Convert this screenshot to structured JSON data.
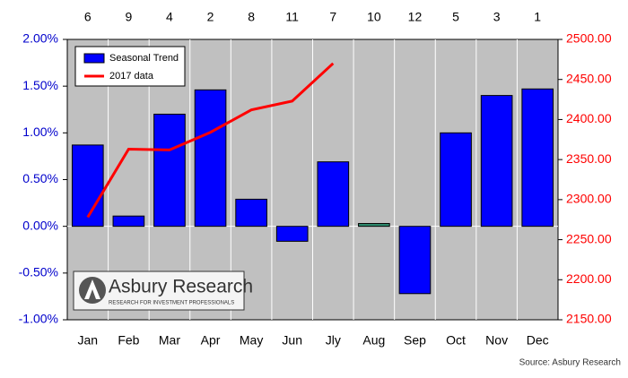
{
  "chart_data": {
    "type": "bar",
    "ranks": [
      6,
      9,
      4,
      2,
      8,
      11,
      7,
      10,
      12,
      5,
      3,
      1
    ],
    "categories": [
      "Jan",
      "Feb",
      "Mar",
      "Apr",
      "May",
      "Jun",
      "Jly",
      "Aug",
      "Sep",
      "Oct",
      "Nov",
      "Dec"
    ],
    "series": [
      {
        "name": "Seasonal Trend",
        "type": "bar",
        "color": "#0000ff",
        "point_colors": [
          "#0000ff",
          "#0000ff",
          "#0000ff",
          "#0000ff",
          "#0000ff",
          "#0000ff",
          "#0000ff",
          "#2e8b6e",
          "#0000ff",
          "#0000ff",
          "#0000ff",
          "#0000ff"
        ],
        "values": [
          0.87,
          0.11,
          1.2,
          1.46,
          0.29,
          -0.16,
          0.69,
          0.03,
          -0.72,
          1.0,
          1.4,
          1.47
        ]
      },
      {
        "name": "2017 data",
        "type": "line",
        "color": "#ff0000",
        "axis": "y2",
        "values": [
          2278,
          2363,
          2362,
          2384,
          2412,
          2423,
          2470,
          null,
          null,
          null,
          null,
          null
        ]
      }
    ],
    "ylim": [
      -1.0,
      2.0
    ],
    "yticks": [
      {
        "value": -1.0,
        "label": "-1.00%"
      },
      {
        "value": -0.5,
        "label": "-0.50%"
      },
      {
        "value": 0,
        "label": "0.00%"
      },
      {
        "value": 0.5,
        "label": "0.50%"
      },
      {
        "value": 1.0,
        "label": "1.00%"
      },
      {
        "value": 1.5,
        "label": "1.50%"
      },
      {
        "value": 2.0,
        "label": "2.00%"
      }
    ],
    "y2lim": [
      2150,
      2500
    ],
    "y2ticks": [
      {
        "value": 2150,
        "label": "2150.00"
      },
      {
        "value": 2200,
        "label": "2200.00"
      },
      {
        "value": 2250,
        "label": "2250.00"
      },
      {
        "value": 2300,
        "label": "2300.00"
      },
      {
        "value": 2350,
        "label": "2350.00"
      },
      {
        "value": 2400,
        "label": "2400.00"
      },
      {
        "value": 2450,
        "label": "2450.00"
      },
      {
        "value": 2500,
        "label": "2500.00"
      }
    ],
    "y_color": "#0000cc",
    "y2_color": "#ff0000",
    "logo": {
      "name": "Asbury Research",
      "tagline": "RESEARCH FOR INVESTMENT PROFESSIONALS"
    },
    "source": "Source: Asbury Research"
  }
}
